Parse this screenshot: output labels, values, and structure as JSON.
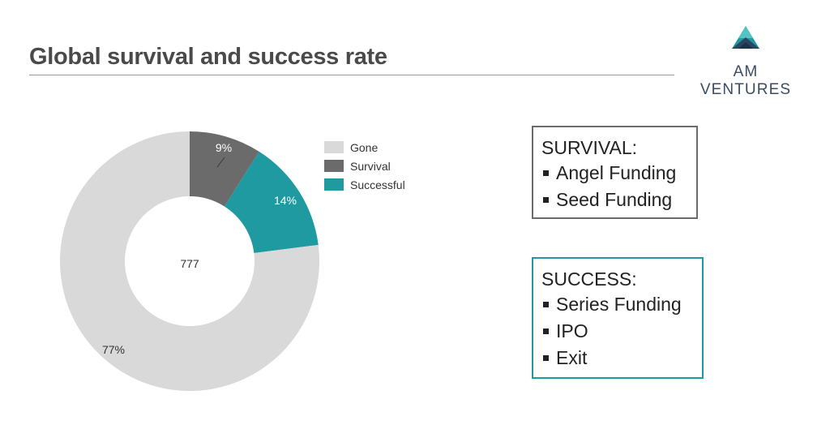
{
  "header": {
    "title": "Global survival and success rate",
    "logo_text": "AM VENTURES"
  },
  "chart_data": {
    "type": "pie",
    "donut": true,
    "center_label": "777",
    "categories": [
      "Gone",
      "Survival",
      "Successful"
    ],
    "values": [
      77,
      9,
      14
    ],
    "value_labels": [
      "77%",
      "9%",
      "14%"
    ],
    "colors": [
      "#d9d9d9",
      "#6b6b6b",
      "#1e9aa0"
    ],
    "legend_position": "right"
  },
  "boxes": {
    "survival": {
      "heading": "SURVIVAL:",
      "items": [
        "Angel Funding",
        "Seed Funding"
      ],
      "border_color": "#6b6b6b"
    },
    "success": {
      "heading": "SUCCESS:",
      "items": [
        "Series Funding",
        "IPO",
        "Exit"
      ],
      "border_color": "#1e9aa0"
    }
  }
}
